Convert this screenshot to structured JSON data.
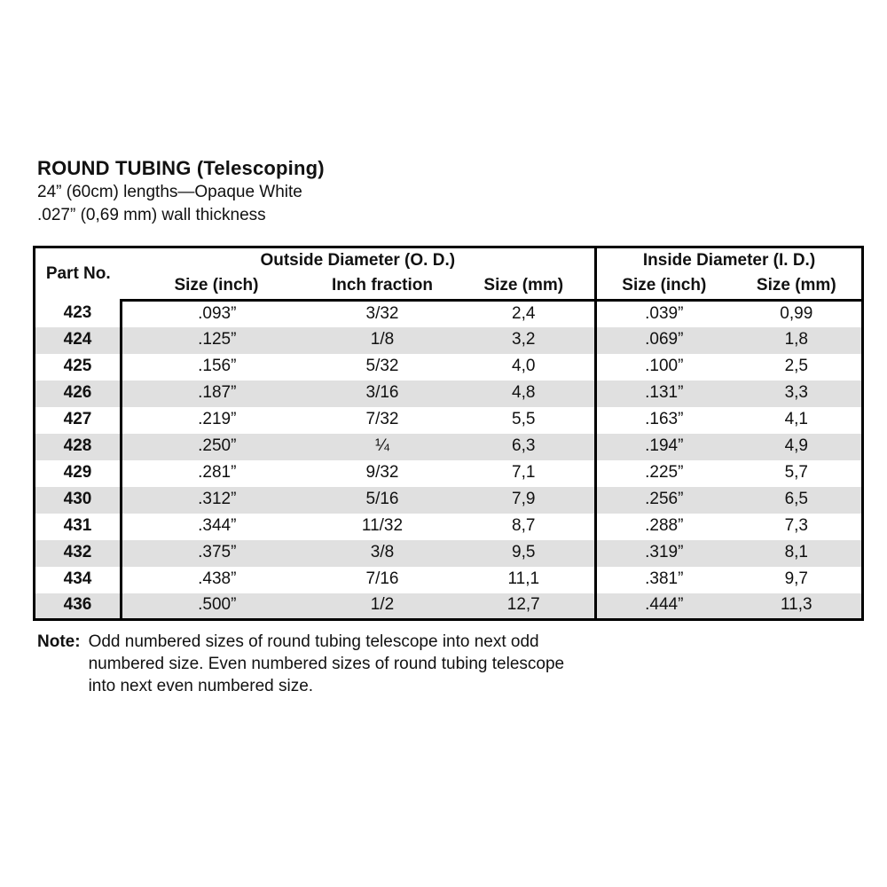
{
  "title": "ROUND TUBING (Telescoping)",
  "subtitle_line1": "24” (60cm) lengths—Opaque White",
  "subtitle_line2": ".027” (0,69 mm) wall thickness",
  "table": {
    "part_no_header": "Part No.",
    "od_group_header": "Outside Diameter (O. D.)",
    "id_group_header": "Inside Diameter (I. D.)",
    "subheaders": {
      "od_size_inch": "Size (inch)",
      "od_inch_fraction": "Inch fraction",
      "od_size_mm": "Size (mm)",
      "id_size_inch": "Size (inch)",
      "id_size_mm": "Size (mm)"
    },
    "rows": [
      {
        "part_no": "423",
        "od_size_inch": ".093”",
        "od_inch_fraction": "3/32",
        "od_size_mm": "2,4",
        "id_size_inch": ".039”",
        "id_size_mm": "0,99"
      },
      {
        "part_no": "424",
        "od_size_inch": ".125”",
        "od_inch_fraction": "1/8",
        "od_size_mm": "3,2",
        "id_size_inch": ".069”",
        "id_size_mm": "1,8"
      },
      {
        "part_no": "425",
        "od_size_inch": ".156”",
        "od_inch_fraction": "5/32",
        "od_size_mm": "4,0",
        "id_size_inch": ".100”",
        "id_size_mm": "2,5"
      },
      {
        "part_no": "426",
        "od_size_inch": ".187”",
        "od_inch_fraction": "3/16",
        "od_size_mm": "4,8",
        "id_size_inch": ".131”",
        "id_size_mm": "3,3"
      },
      {
        "part_no": "427",
        "od_size_inch": ".219”",
        "od_inch_fraction": "7/32",
        "od_size_mm": "5,5",
        "id_size_inch": ".163”",
        "id_size_mm": "4,1"
      },
      {
        "part_no": "428",
        "od_size_inch": ".250”",
        "od_inch_fraction": "¼",
        "od_size_mm": "6,3",
        "id_size_inch": ".194”",
        "id_size_mm": "4,9"
      },
      {
        "part_no": "429",
        "od_size_inch": ".281”",
        "od_inch_fraction": "9/32",
        "od_size_mm": "7,1",
        "id_size_inch": ".225”",
        "id_size_mm": "5,7"
      },
      {
        "part_no": "430",
        "od_size_inch": ".312”",
        "od_inch_fraction": "5/16",
        "od_size_mm": "7,9",
        "id_size_inch": ".256”",
        "id_size_mm": "6,5"
      },
      {
        "part_no": "431",
        "od_size_inch": ".344”",
        "od_inch_fraction": "11/32",
        "od_size_mm": "8,7",
        "id_size_inch": ".288”",
        "id_size_mm": "7,3"
      },
      {
        "part_no": "432",
        "od_size_inch": ".375”",
        "od_inch_fraction": "3/8",
        "od_size_mm": "9,5",
        "id_size_inch": ".319”",
        "id_size_mm": "8,1"
      },
      {
        "part_no": "434",
        "od_size_inch": ".438”",
        "od_inch_fraction": "7/16",
        "od_size_mm": "11,1",
        "id_size_inch": ".381”",
        "id_size_mm": "9,7"
      },
      {
        "part_no": "436",
        "od_size_inch": ".500”",
        "od_inch_fraction": "1/2",
        "od_size_mm": "12,7",
        "id_size_inch": ".444”",
        "id_size_mm": "11,3"
      }
    ]
  },
  "note": {
    "label": "Note:",
    "text": "Odd numbered sizes of round tubing telescope into next odd numbered size. Even numbered sizes of round tubing telescope into next even numbered size."
  },
  "colors": {
    "row_shade": "#e0e0e0",
    "border": "#000000",
    "thin_border": "#ababab",
    "text": "#111111",
    "background": "#ffffff"
  }
}
